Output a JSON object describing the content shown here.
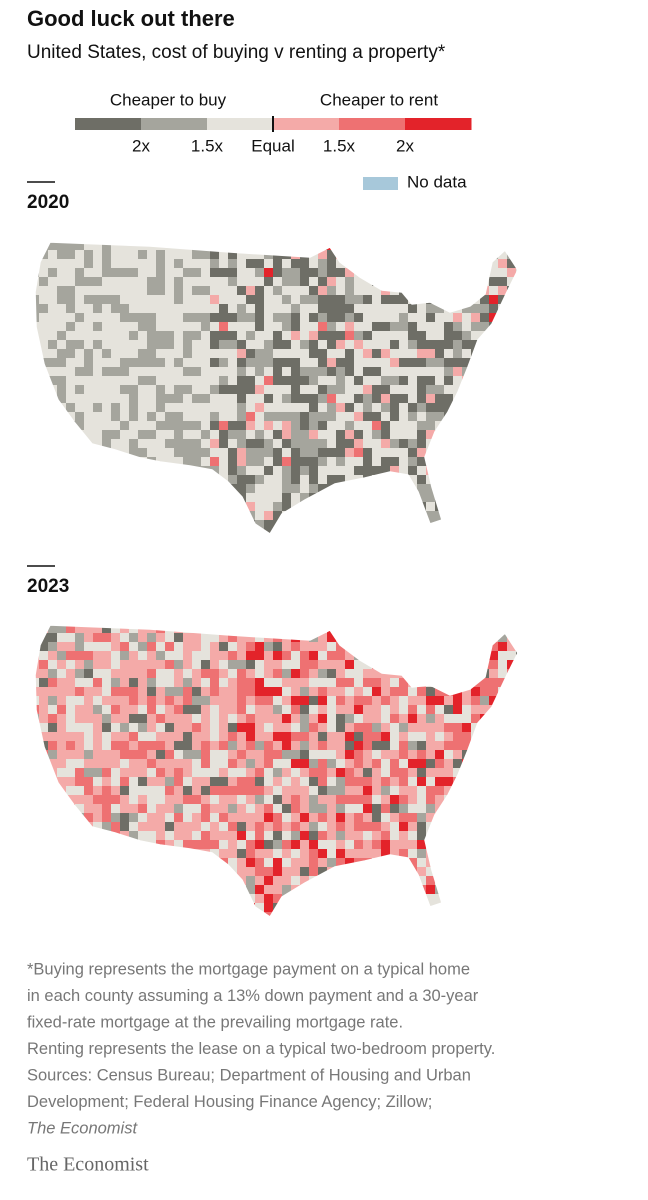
{
  "header": {
    "title": "Good luck out there",
    "subtitle": "United States, cost of buying v renting a property*"
  },
  "legend": {
    "left_label": "Cheaper to buy",
    "right_label": "Cheaper to rent",
    "colors": [
      "#6e6e66",
      "#a5a59d",
      "#e5e3dc",
      "#f4aaa8",
      "#ee7172",
      "#e3232a"
    ],
    "tick_labels": [
      "2x",
      "1.5x",
      "Equal",
      "1.5x",
      "2x"
    ],
    "no_data_label": "No data",
    "no_data_color": "#a7c8da"
  },
  "maps": [
    {
      "year": "2020"
    },
    {
      "year": "2023"
    }
  ],
  "footnote": [
    "*Buying represents the mortgage payment on a typical home",
    "in each county assuming a 13% down payment and a 30-year",
    "fixed-rate mortgage at the prevailing mortgage rate.",
    "Renting represents the lease on a typical two-bedroom property.",
    "Sources: Census Bureau; Department of Housing and Urban",
    "Development; Federal Housing Finance Agency; Zillow;",
    "The Economist"
  ],
  "logo": "The Economist"
}
